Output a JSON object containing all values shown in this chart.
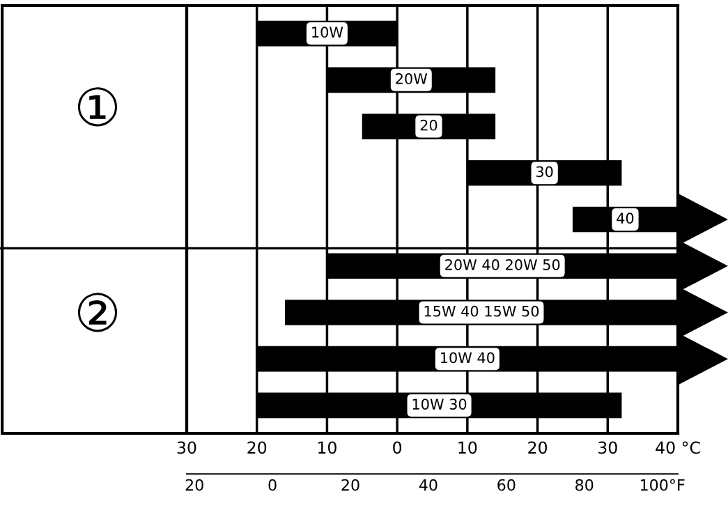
{
  "chart_data": {
    "type": "bar",
    "orientation": "horizontal",
    "color": "#000000",
    "categories": [
      "10W",
      "20W",
      "20",
      "30",
      "40",
      "20W 40 20W 50",
      "15W 40 15W 50",
      "10W 40",
      "10W 30"
    ],
    "base": [
      -20,
      -10,
      -5,
      10,
      25,
      -10,
      -16,
      -20,
      -20
    ],
    "values": [
      20,
      24,
      19,
      22,
      15,
      50,
      56,
      60,
      52
    ],
    "annotations": [
      "①",
      "②"
    ],
    "xlim": [
      -30,
      40
    ],
    "xticks": [
      {
        "value": -30,
        "label": "30"
      },
      {
        "value": -20,
        "label": "20"
      },
      {
        "value": -10,
        "label": "10"
      },
      0,
      10,
      20,
      30,
      {
        "value": 40,
        "label": "40 °C"
      }
    ],
    "x2lim": [
      -22,
      104
    ],
    "x2ticks": [
      {
        "value": -20,
        "label": "20"
      },
      0,
      20,
      40,
      60,
      80,
      {
        "value": 100,
        "label": "100°F"
      }
    ],
    "grid": "x",
    "legend": false
  }
}
